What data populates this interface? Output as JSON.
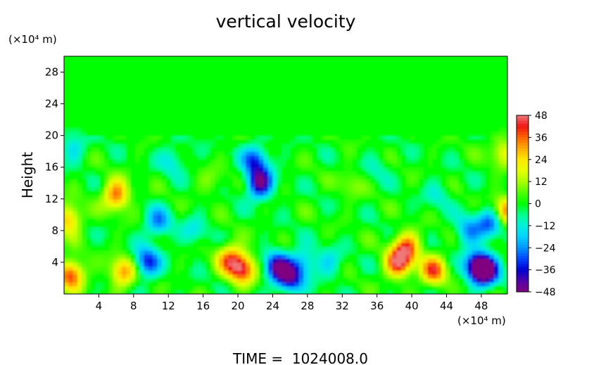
{
  "chart_data": {
    "type": "heatmap",
    "title": "vertical velocity",
    "ylabel": "Height",
    "x_unit": "(×10⁴ m)",
    "y_unit": "(×10⁴ m)",
    "footer": "TIME =  1024008.0",
    "xlim": [
      0,
      51
    ],
    "ylim": [
      0,
      30
    ],
    "x_ticks": [
      4,
      8,
      12,
      16,
      20,
      24,
      28,
      32,
      36,
      40,
      44,
      48
    ],
    "y_ticks": [
      4,
      8,
      12,
      16,
      20,
      24,
      28
    ],
    "colorbar": {
      "range": [
        -48,
        48
      ],
      "ticks": [
        48,
        36,
        24,
        12,
        0,
        -12,
        -24,
        -36,
        -48
      ]
    },
    "background_value": 0,
    "disturbed_layer_top": 20,
    "features": [
      {
        "x": 0.8,
        "y": 2.5,
        "value": 40
      },
      {
        "x": 0.5,
        "y": 9.5,
        "value": 30
      },
      {
        "x": 6.0,
        "y": 12.5,
        "value": 36
      },
      {
        "x": 6.8,
        "y": 2.8,
        "value": 32
      },
      {
        "x": 9.5,
        "y": 4.0,
        "value": -34
      },
      {
        "x": 10.8,
        "y": 9.0,
        "value": -24
      },
      {
        "x": 12.5,
        "y": 17.0,
        "value": -14
      },
      {
        "x": 15.0,
        "y": 8.0,
        "value": -12
      },
      {
        "x": 19.0,
        "y": 4.5,
        "value": 30
      },
      {
        "x": 20.5,
        "y": 3.2,
        "value": 42
      },
      {
        "x": 22.5,
        "y": 14.0,
        "value": -44
      },
      {
        "x": 22.0,
        "y": 17.0,
        "value": -30
      },
      {
        "x": 24.5,
        "y": 3.5,
        "value": -40
      },
      {
        "x": 26.0,
        "y": 2.0,
        "value": -36
      },
      {
        "x": 27.5,
        "y": 4.0,
        "value": -20
      },
      {
        "x": 30.5,
        "y": 4.0,
        "value": -14
      },
      {
        "x": 38.5,
        "y": 4.0,
        "value": 44
      },
      {
        "x": 39.5,
        "y": 6.0,
        "value": 32
      },
      {
        "x": 42.5,
        "y": 3.0,
        "value": 36
      },
      {
        "x": 47.5,
        "y": 3.5,
        "value": -40
      },
      {
        "x": 48.5,
        "y": 3.0,
        "value": -48
      },
      {
        "x": 49.0,
        "y": 9.0,
        "value": -28
      },
      {
        "x": 46.5,
        "y": 8.0,
        "value": -22
      },
      {
        "x": 50.8,
        "y": 10.5,
        "value": 32
      },
      {
        "x": 50.5,
        "y": 18.0,
        "value": 20
      },
      {
        "x": 1.0,
        "y": 18.5,
        "value": -14
      },
      {
        "x": 43.0,
        "y": 12.5,
        "value": -10
      },
      {
        "x": 33.0,
        "y": 14.0,
        "value": 10
      },
      {
        "x": 36.0,
        "y": 16.0,
        "value": -8
      },
      {
        "x": 17.0,
        "y": 14.0,
        "value": 8
      }
    ]
  }
}
